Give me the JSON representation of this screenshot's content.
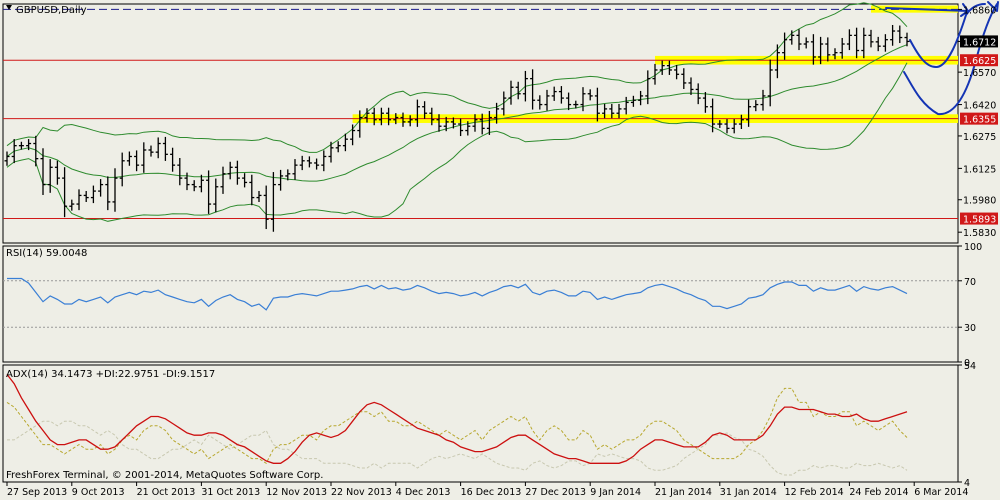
{
  "colors": {
    "background": "#eeeee6",
    "price_bars": "#000000",
    "bollinger": "#2e8b2e",
    "rsi": "#3a7fd5",
    "adx": "#cc1010",
    "plus_di": "#b8a830",
    "minus_di": "#c8c8b0",
    "support_level": "#d01818",
    "highlight_zone": "#ffff00",
    "annotation": "#1434b4",
    "resistance_line": "#1a1a8a"
  },
  "main_panel": {
    "title": "GBPUSD,Daily",
    "title_icon": "triangle-down-icon",
    "price_labels": [
      "1.6860",
      "1.6712",
      "1.6570",
      "1.6420",
      "1.6275",
      "1.6125",
      "1.5980",
      "1.5830"
    ],
    "levels": [
      {
        "name": "1.6625",
        "value": 1.6625
      },
      {
        "name": "1.6355",
        "value": 1.6355
      },
      {
        "name": "1.5893",
        "value": 1.5893
      }
    ],
    "current_price": "1.6712"
  },
  "rsi_panel": {
    "title": "RSI(14) 59.0048",
    "scale_labels": [
      "100",
      "70",
      "30",
      "0"
    ]
  },
  "adx_panel": {
    "title": "ADX(14) 34.1473 +DI:22.9751 -DI:9.1517",
    "scale_labels": [
      "54",
      "4"
    ],
    "copyright": "FreshForex Terminal, © 2001-2014, MetaQuotes Software Corp."
  },
  "date_labels": [
    "27 Sep 2013",
    "9 Oct 2013",
    "21 Oct 2013",
    "31 Oct 2013",
    "12 Nov 2013",
    "22 Nov 2013",
    "4 Dec 2013",
    "16 Dec 2013",
    "27 Dec 2013",
    "9 Jan 2014",
    "21 Jan 2014",
    "31 Jan 2014",
    "12 Feb 2014",
    "24 Feb 2014",
    "6 Mar 2014"
  ],
  "chart_data": [
    {
      "type": "ohlc",
      "symbol": "GBPUSD",
      "timeframe": "Daily",
      "x_range": [
        "27 Sep 2013",
        "7 Mar 2014"
      ],
      "ylim": [
        1.578,
        1.6885
      ],
      "closes": [
        1.618,
        1.623,
        1.623,
        1.624,
        1.617,
        1.605,
        1.613,
        1.608,
        1.595,
        1.596,
        1.6,
        1.599,
        1.602,
        1.605,
        1.597,
        1.608,
        1.616,
        1.618,
        1.614,
        1.621,
        1.62,
        1.624,
        1.619,
        1.614,
        1.608,
        1.605,
        1.604,
        1.607,
        1.596,
        1.604,
        1.61,
        1.613,
        1.608,
        1.606,
        1.599,
        1.6,
        1.589,
        1.605,
        1.609,
        1.61,
        1.614,
        1.616,
        1.615,
        1.614,
        1.618,
        1.622,
        1.623,
        1.626,
        1.63,
        1.636,
        1.638,
        1.635,
        1.638,
        1.635,
        1.636,
        1.634,
        1.635,
        1.641,
        1.638,
        1.635,
        1.632,
        1.634,
        1.633,
        1.63,
        1.632,
        1.635,
        1.631,
        1.636,
        1.64,
        1.645,
        1.65,
        1.647,
        1.654,
        1.644,
        1.642,
        1.646,
        1.648,
        1.645,
        1.642,
        1.642,
        1.647,
        1.646,
        1.638,
        1.64,
        1.638,
        1.64,
        1.643,
        1.644,
        1.646,
        1.654,
        1.658,
        1.66,
        1.658,
        1.656,
        1.652,
        1.649,
        1.645,
        1.641,
        1.633,
        1.633,
        1.631,
        1.633,
        1.635,
        1.641,
        1.642,
        1.646,
        1.658,
        1.666,
        1.672,
        1.674,
        1.67,
        1.671,
        1.664,
        1.67,
        1.665,
        1.666,
        1.67,
        1.674,
        1.667,
        1.674,
        1.671,
        1.669,
        1.672,
        1.676,
        1.673,
        1.6712
      ],
      "levels": [
        1.6625,
        1.6355,
        1.5893
      ]
    },
    {
      "type": "line",
      "name": "RSI(14)",
      "ylim": [
        0,
        100
      ],
      "reference_levels": [
        70,
        30
      ],
      "values": [
        72,
        72,
        72,
        68,
        60,
        52,
        57,
        54,
        50,
        50,
        54,
        52,
        54,
        56,
        51,
        56,
        58,
        60,
        58,
        61,
        60,
        62,
        58,
        56,
        54,
        52,
        51,
        54,
        48,
        53,
        56,
        58,
        54,
        52,
        48,
        50,
        45,
        55,
        56,
        56,
        58,
        59,
        58,
        57,
        59,
        61,
        61,
        62,
        63,
        65,
        66,
        63,
        66,
        63,
        64,
        62,
        63,
        66,
        64,
        61,
        59,
        60,
        59,
        57,
        58,
        60,
        57,
        60,
        62,
        65,
        66,
        64,
        67,
        60,
        58,
        61,
        62,
        60,
        57,
        57,
        61,
        60,
        54,
        56,
        54,
        56,
        58,
        59,
        60,
        64,
        66,
        67,
        65,
        63,
        60,
        58,
        55,
        53,
        48,
        48,
        46,
        48,
        50,
        55,
        56,
        58,
        64,
        67,
        69,
        69,
        66,
        66,
        61,
        64,
        62,
        62,
        64,
        66,
        61,
        65,
        63,
        62,
        64,
        65,
        62,
        59
      ]
    },
    {
      "type": "line",
      "name": "ADX(14) +DI -DI",
      "ylim": [
        4,
        54
      ],
      "series": [
        {
          "name": "ADX(14)",
          "values": [
            50,
            46,
            40,
            35,
            30,
            26,
            22,
            20,
            20,
            21,
            22,
            22,
            20,
            18,
            18,
            19,
            22,
            25,
            28,
            30,
            32,
            32,
            31,
            29,
            27,
            25,
            24,
            24,
            25,
            25,
            24,
            22,
            20,
            19,
            17,
            15,
            13,
            12,
            12,
            14,
            17,
            21,
            24,
            25,
            24,
            23,
            24,
            26,
            30,
            34,
            37,
            38,
            37,
            35,
            33,
            31,
            29,
            27,
            26,
            25,
            24,
            22,
            21,
            19,
            18,
            17,
            17,
            18,
            19,
            21,
            23,
            24,
            24,
            22,
            20,
            18,
            16,
            15,
            14,
            14,
            13,
            12,
            12,
            12,
            12,
            12,
            13,
            15,
            18,
            20,
            22,
            22,
            21,
            20,
            19,
            19,
            19,
            21,
            24,
            25,
            24,
            22,
            22,
            22,
            22,
            24,
            28,
            33,
            36,
            36,
            35,
            35,
            35,
            34,
            33,
            33,
            32,
            32,
            33,
            31,
            30,
            30,
            31,
            32,
            33,
            34
          ]
        },
        {
          "name": "+DI",
          "values": [
            38,
            36,
            32,
            28,
            24,
            20,
            20,
            18,
            16,
            18,
            20,
            18,
            18,
            20,
            16,
            18,
            22,
            24,
            22,
            26,
            28,
            28,
            26,
            22,
            20,
            18,
            16,
            18,
            14,
            16,
            18,
            20,
            18,
            16,
            14,
            14,
            12,
            18,
            20,
            20,
            22,
            24,
            24,
            22,
            26,
            28,
            28,
            30,
            32,
            34,
            34,
            32,
            34,
            30,
            30,
            28,
            28,
            30,
            28,
            26,
            24,
            26,
            24,
            22,
            24,
            26,
            22,
            26,
            28,
            30,
            32,
            30,
            32,
            26,
            22,
            26,
            28,
            26,
            22,
            22,
            26,
            24,
            18,
            20,
            18,
            20,
            22,
            22,
            24,
            28,
            30,
            30,
            28,
            26,
            22,
            20,
            18,
            16,
            14,
            14,
            14,
            14,
            16,
            20,
            22,
            26,
            32,
            40,
            44,
            44,
            38,
            38,
            32,
            34,
            32,
            32,
            34,
            34,
            28,
            30,
            28,
            26,
            28,
            30,
            26,
            23
          ]
        },
        {
          "name": "-DI",
          "values": [
            22,
            22,
            24,
            26,
            28,
            30,
            30,
            28,
            30,
            30,
            28,
            28,
            26,
            24,
            26,
            24,
            20,
            18,
            18,
            16,
            14,
            14,
            16,
            18,
            18,
            20,
            22,
            20,
            24,
            22,
            20,
            18,
            20,
            22,
            24,
            24,
            26,
            20,
            18,
            18,
            16,
            14,
            14,
            14,
            12,
            12,
            12,
            12,
            11,
            10,
            10,
            12,
            10,
            12,
            12,
            12,
            12,
            10,
            12,
            14,
            15,
            14,
            15,
            16,
            15,
            14,
            16,
            14,
            12,
            11,
            10,
            10,
            9,
            12,
            13,
            11,
            10,
            11,
            13,
            13,
            11,
            12,
            16,
            15,
            16,
            15,
            14,
            14,
            13,
            10,
            9,
            9,
            10,
            11,
            14,
            16,
            18,
            20,
            24,
            24,
            25,
            23,
            22,
            18,
            17,
            15,
            11,
            8,
            7,
            7,
            9,
            9,
            11,
            10,
            11,
            11,
            10,
            10,
            12,
            11,
            11,
            12,
            11,
            10,
            11,
            9
          ]
        }
      ]
    }
  ]
}
